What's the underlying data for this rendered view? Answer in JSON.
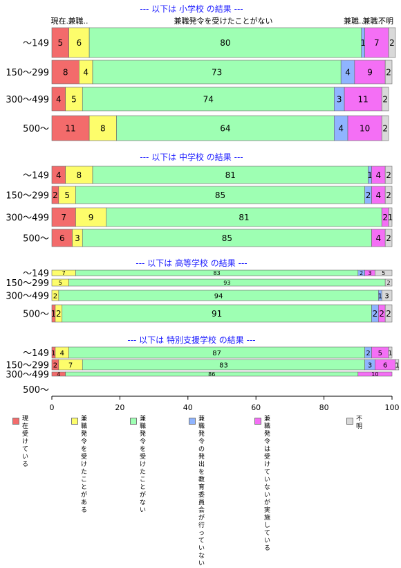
{
  "chart_data": {
    "type": "bar",
    "orientation": "horizontal",
    "stacked": true,
    "xlim": [
      0,
      100
    ],
    "x_ticks": [
      "0",
      "20",
      "40",
      "60",
      "80",
      "100"
    ],
    "top_labels": [
      "現在..",
      "兼職..",
      "兼職発令を受けたことがない",
      "兼職..",
      "兼職..",
      "不明"
    ],
    "series": [
      {
        "name": "現在受けている",
        "color": "#f36b6b"
      },
      {
        "name": "兼職発令を受けたことがある",
        "color": "#fdfd6b"
      },
      {
        "name": "兼職発令を受けたことがない",
        "color": "#9effb3"
      },
      {
        "name": "兼職発令の発出を教育委員会が行っていない",
        "color": "#8fb4ff"
      },
      {
        "name": "兼職発令は受けていないが実施している",
        "color": "#f46ff5"
      },
      {
        "name": "不明",
        "color": "#d9d9d9"
      }
    ],
    "groups": [
      {
        "title": "--- 以下は 小学校 の結果 ---",
        "rows": [
          {
            "label": "～149",
            "values": [
              5,
              6,
              80,
              1,
              7,
              2
            ]
          },
          {
            "label": "150～299",
            "values": [
              8,
              4,
              73,
              4,
              9,
              2
            ]
          },
          {
            "label": "300～499",
            "values": [
              4,
              5,
              74,
              3,
              11,
              2
            ]
          },
          {
            "label": "500～",
            "values": [
              11,
              8,
              64,
              4,
              10,
              2
            ]
          }
        ]
      },
      {
        "title": "--- 以下は 中学校 の結果 ---",
        "rows": [
          {
            "label": "～149",
            "values": [
              4,
              8,
              81,
              1,
              4,
              2
            ]
          },
          {
            "label": "150～299",
            "values": [
              2,
              5,
              85,
              2,
              4,
              2
            ]
          },
          {
            "label": "300～499",
            "values": [
              7,
              9,
              81,
              0,
              2,
              1
            ]
          },
          {
            "label": "500～",
            "values": [
              6,
              3,
              85,
              0,
              4,
              2
            ]
          }
        ]
      },
      {
        "title": "--- 以下は 高等学校 の結果 ---",
        "rows": [
          {
            "label": "～149",
            "values": [
              0,
              7,
              83,
              2,
              3,
              5
            ]
          },
          {
            "label": "150～299",
            "values": [
              0,
              5,
              93,
              0,
              0,
              2
            ]
          },
          {
            "label": "300～499",
            "values": [
              0,
              2,
              94,
              1,
              0,
              3
            ]
          },
          {
            "label": "500～",
            "values": [
              1,
              2,
              91,
              2,
              2,
              2
            ]
          }
        ]
      },
      {
        "title": "--- 以下は 特別支援学校 の結果 ---",
        "rows": [
          {
            "label": "～149",
            "values": [
              1,
              4,
              87,
              2,
              5,
              1
            ]
          },
          {
            "label": "150～299",
            "values": [
              2,
              7,
              83,
              3,
              6,
              1
            ]
          },
          {
            "label": "300～499",
            "values": [
              4,
              0,
              86,
              0,
              10,
              0
            ]
          },
          {
            "label": "500～",
            "values": [
              0,
              0,
              0,
              0,
              0,
              0
            ]
          }
        ]
      }
    ],
    "legend": {
      "position": "bottom",
      "labels": [
        "現在受けている",
        "兼職発令を受け\nたことがある",
        "兼職発令を受け\nたことがない",
        "兼職発令の発出を教育\n委員会が行っていない",
        "兼職発令は受けてい\nないが実施している",
        "不明"
      ]
    }
  }
}
